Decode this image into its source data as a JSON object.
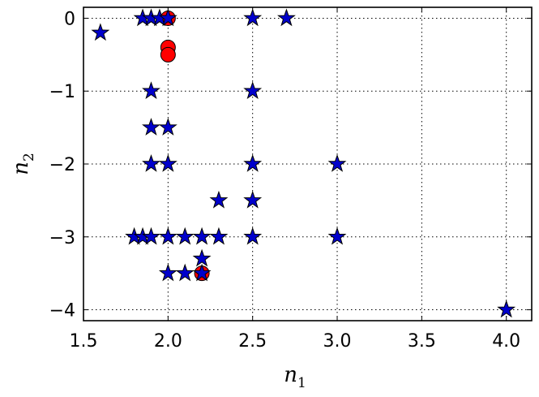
{
  "chart_data": {
    "type": "scatter",
    "xlabel": "n",
    "xlabel_sub": "1",
    "ylabel": "n",
    "ylabel_sub": "2",
    "xlim": [
      1.5,
      4.15
    ],
    "ylim": [
      -4.15,
      0.15
    ],
    "xticks": [
      1.5,
      2.0,
      2.5,
      3.0,
      3.5,
      4.0
    ],
    "xtick_labels": [
      "1.5",
      "2.0",
      "2.5",
      "3.0",
      "3.5",
      "4.0"
    ],
    "yticks": [
      0,
      -1,
      -2,
      -3,
      -4
    ],
    "ytick_labels": [
      "0",
      "−1",
      "−2",
      "−3",
      "−4"
    ],
    "grid": true,
    "colors": {
      "circle_fill": "#ff0000",
      "star_fill": "#0000cc",
      "edge": "#000000"
    },
    "series": [
      {
        "marker": "circle",
        "points": [
          [
            2.0,
            0.0
          ],
          [
            2.0,
            -0.4
          ],
          [
            2.0,
            -0.5
          ],
          [
            2.2,
            -3.5
          ]
        ]
      },
      {
        "marker": "star",
        "points": [
          [
            1.6,
            -0.2
          ],
          [
            1.85,
            0.0
          ],
          [
            1.9,
            0.0
          ],
          [
            1.95,
            0.0
          ],
          [
            2.0,
            0.0
          ],
          [
            2.5,
            0.0
          ],
          [
            2.7,
            0.0
          ],
          [
            1.9,
            -1.0
          ],
          [
            2.5,
            -1.0
          ],
          [
            1.9,
            -1.5
          ],
          [
            2.0,
            -1.5
          ],
          [
            1.9,
            -2.0
          ],
          [
            2.0,
            -2.0
          ],
          [
            2.5,
            -2.0
          ],
          [
            3.0,
            -2.0
          ],
          [
            2.3,
            -2.5
          ],
          [
            2.5,
            -2.5
          ],
          [
            1.8,
            -3.0
          ],
          [
            1.85,
            -3.0
          ],
          [
            1.9,
            -3.0
          ],
          [
            2.0,
            -3.0
          ],
          [
            2.1,
            -3.0
          ],
          [
            2.2,
            -3.0
          ],
          [
            2.3,
            -3.0
          ],
          [
            2.5,
            -3.0
          ],
          [
            3.0,
            -3.0
          ],
          [
            2.2,
            -3.3
          ],
          [
            2.0,
            -3.5
          ],
          [
            2.1,
            -3.5
          ],
          [
            2.2,
            -3.5
          ],
          [
            4.0,
            -4.0
          ]
        ]
      }
    ]
  }
}
